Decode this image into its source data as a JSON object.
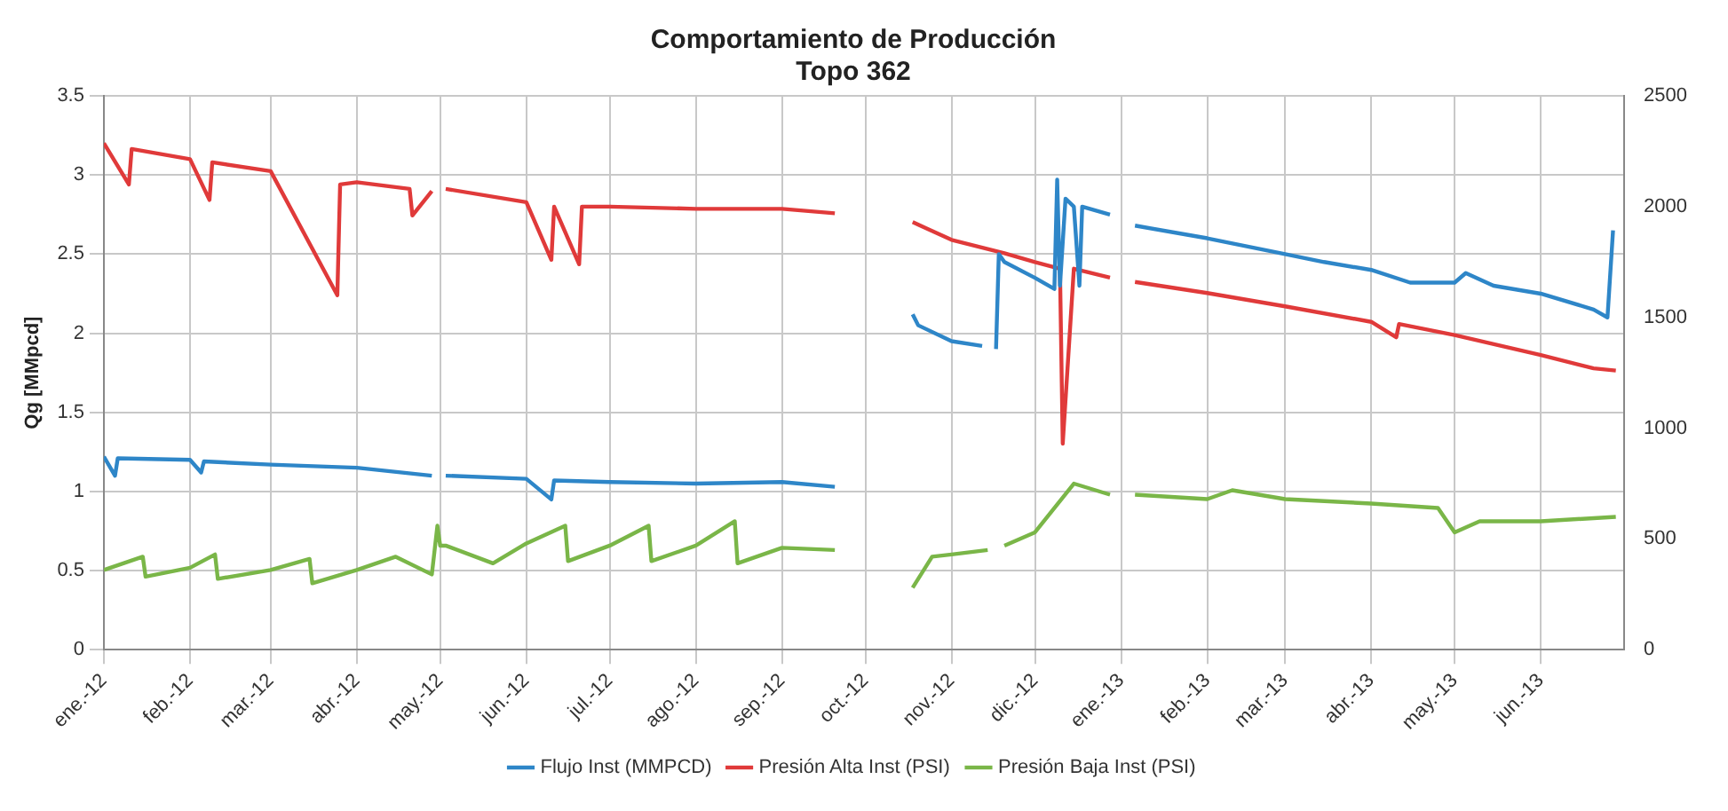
{
  "chart_data": {
    "type": "line",
    "title": "Comportamiento de Producción",
    "subtitle": "Topo 362",
    "ylabel": "Qg [MMpcd]",
    "xlim": [
      "2012-01-01",
      "2013-07-01"
    ],
    "xticks": [
      {
        "value": "2012-01-01",
        "label": "ene.-12"
      },
      {
        "value": "2012-02-01",
        "label": "feb.-12"
      },
      {
        "value": "2012-03-01",
        "label": "mar.-12"
      },
      {
        "value": "2012-04-01",
        "label": "abr.-12"
      },
      {
        "value": "2012-05-01",
        "label": "may.-12"
      },
      {
        "value": "2012-06-01",
        "label": "jun.-12"
      },
      {
        "value": "2012-07-01",
        "label": "jul.-12"
      },
      {
        "value": "2012-08-01",
        "label": "ago.-12"
      },
      {
        "value": "2012-09-01",
        "label": "sep.-12"
      },
      {
        "value": "2012-10-01",
        "label": "oct.-12"
      },
      {
        "value": "2012-11-01",
        "label": "nov.-12"
      },
      {
        "value": "2012-12-01",
        "label": "dic.-12"
      },
      {
        "value": "2013-01-01",
        "label": "ene.-13"
      },
      {
        "value": "2013-02-01",
        "label": "feb.-13"
      },
      {
        "value": "2013-03-01",
        "label": "mar.-13"
      },
      {
        "value": "2013-04-01",
        "label": "abr.-13"
      },
      {
        "value": "2013-05-01",
        "label": "may.-13"
      },
      {
        "value": "2013-06-01",
        "label": "jun.-13"
      }
    ],
    "ylim": [
      0,
      3.5
    ],
    "yticks": [
      0,
      0.5,
      1,
      1.5,
      2,
      2.5,
      3,
      3.5
    ],
    "y2lim": [
      0,
      2500
    ],
    "y2ticks": [
      0,
      500,
      1000,
      1500,
      2000,
      2500
    ],
    "grid": true,
    "legend": "bottom",
    "marker": "none",
    "line_style": "solid",
    "series": [
      {
        "name": "Flujo Inst (MMPCD)",
        "color": "#2e86c8",
        "x": [
          "2012-01-01",
          "2012-01-05",
          "2012-01-06",
          "2012-02-01",
          "2012-02-05",
          "2012-02-06",
          "2012-03-01",
          "2012-04-01",
          "2012-04-28",
          "2012-04-30",
          "2012-05-03",
          "2012-06-01",
          "2012-06-10",
          "2012-06-11",
          "2012-07-01",
          "2012-08-01",
          "2012-09-01",
          "2012-09-20",
          "2012-10-01",
          "2012-10-18",
          "2012-10-20",
          "2012-11-01",
          "2012-11-12",
          "2012-11-14",
          "2012-11-17",
          "2012-11-18",
          "2012-11-20",
          "2012-12-01",
          "2012-12-08",
          "2012-12-09",
          "2012-12-10",
          "2012-12-12",
          "2012-12-15",
          "2012-12-17",
          "2012-12-18",
          "2012-12-28",
          "2013-01-01",
          "2013-01-06",
          "2013-02-01",
          "2013-03-01",
          "2013-03-15",
          "2013-04-01",
          "2013-04-15",
          "2013-05-01",
          "2013-05-05",
          "2013-05-15",
          "2013-06-01",
          "2013-06-20",
          "2013-06-25",
          "2013-06-27"
        ],
        "values": [
          1.22,
          1.1,
          1.21,
          1.2,
          1.12,
          1.19,
          1.17,
          1.15,
          1.1,
          null,
          1.1,
          1.08,
          0.95,
          1.07,
          1.06,
          1.05,
          1.06,
          1.03,
          null,
          2.12,
          2.05,
          1.95,
          1.92,
          null,
          1.9,
          2.5,
          2.45,
          2.35,
          2.28,
          2.97,
          2.3,
          2.85,
          2.8,
          2.3,
          2.8,
          2.75,
          null,
          2.68,
          2.6,
          2.5,
          2.45,
          2.4,
          2.32,
          2.32,
          2.38,
          2.3,
          2.25,
          2.15,
          2.1,
          2.65
        ]
      },
      {
        "name": "Presión Alta Inst (PSI)",
        "color": "#e03a3a",
        "axis": "y2",
        "x": [
          "2012-01-01",
          "2012-01-10",
          "2012-01-11",
          "2012-02-01",
          "2012-02-08",
          "2012-02-09",
          "2012-03-01",
          "2012-03-25",
          "2012-03-26",
          "2012-04-01",
          "2012-04-20",
          "2012-04-21",
          "2012-04-28",
          "2012-04-30",
          "2012-05-03",
          "2012-06-01",
          "2012-06-10",
          "2012-06-11",
          "2012-06-20",
          "2012-06-21",
          "2012-07-01",
          "2012-08-01",
          "2012-09-01",
          "2012-09-20",
          "2012-10-01",
          "2012-10-18",
          "2012-11-01",
          "2012-11-20",
          "2012-12-01",
          "2012-12-10",
          "2012-12-11",
          "2012-12-15",
          "2012-12-28",
          "2013-01-01",
          "2013-01-06",
          "2013-02-01",
          "2013-03-01",
          "2013-04-01",
          "2013-04-10",
          "2013-04-11",
          "2013-05-01",
          "2013-06-01",
          "2013-06-20",
          "2013-06-28"
        ],
        "values": [
          2286,
          2100,
          2260,
          2214,
          2030,
          2200,
          2160,
          1600,
          2100,
          2110,
          2080,
          1960,
          2070,
          null,
          2080,
          2020,
          1760,
          2000,
          1740,
          2000,
          2000,
          1990,
          1990,
          1970,
          null,
          1930,
          1850,
          1790,
          1750,
          1720,
          930,
          1720,
          1680,
          null,
          1660,
          1610,
          1550,
          1480,
          1410,
          1470,
          1420,
          1330,
          1270,
          1260
        ]
      },
      {
        "name": "Presión Baja Inst (PSI)",
        "color": "#7ab648",
        "axis": "y2",
        "x": [
          "2012-01-01",
          "2012-01-15",
          "2012-01-16",
          "2012-02-01",
          "2012-02-10",
          "2012-02-11",
          "2012-03-01",
          "2012-03-15",
          "2012-03-16",
          "2012-04-01",
          "2012-04-15",
          "2012-04-28",
          "2012-04-30",
          "2012-05-01",
          "2012-05-03",
          "2012-05-20",
          "2012-06-01",
          "2012-06-15",
          "2012-06-16",
          "2012-07-01",
          "2012-07-15",
          "2012-07-16",
          "2012-08-01",
          "2012-08-15",
          "2012-08-16",
          "2012-09-01",
          "2012-09-20",
          "2012-10-01",
          "2012-10-18",
          "2012-10-25",
          "2012-11-01",
          "2012-11-14",
          "2012-11-16",
          "2012-11-20",
          "2012-12-01",
          "2012-12-15",
          "2012-12-28",
          "2013-01-01",
          "2013-01-06",
          "2013-02-01",
          "2013-02-10",
          "2013-03-01",
          "2013-04-01",
          "2013-04-25",
          "2013-05-01",
          "2013-05-10",
          "2013-06-01",
          "2013-06-28"
        ],
        "values": [
          360,
          420,
          330,
          370,
          430,
          320,
          360,
          410,
          300,
          360,
          420,
          340,
          560,
          470,
          470,
          390,
          480,
          560,
          400,
          470,
          560,
          400,
          470,
          580,
          390,
          460,
          450,
          null,
          280,
          420,
          430,
          450,
          null,
          470,
          530,
          750,
          700,
          null,
          700,
          680,
          720,
          680,
          660,
          640,
          530,
          580,
          580,
          600
        ]
      }
    ]
  }
}
